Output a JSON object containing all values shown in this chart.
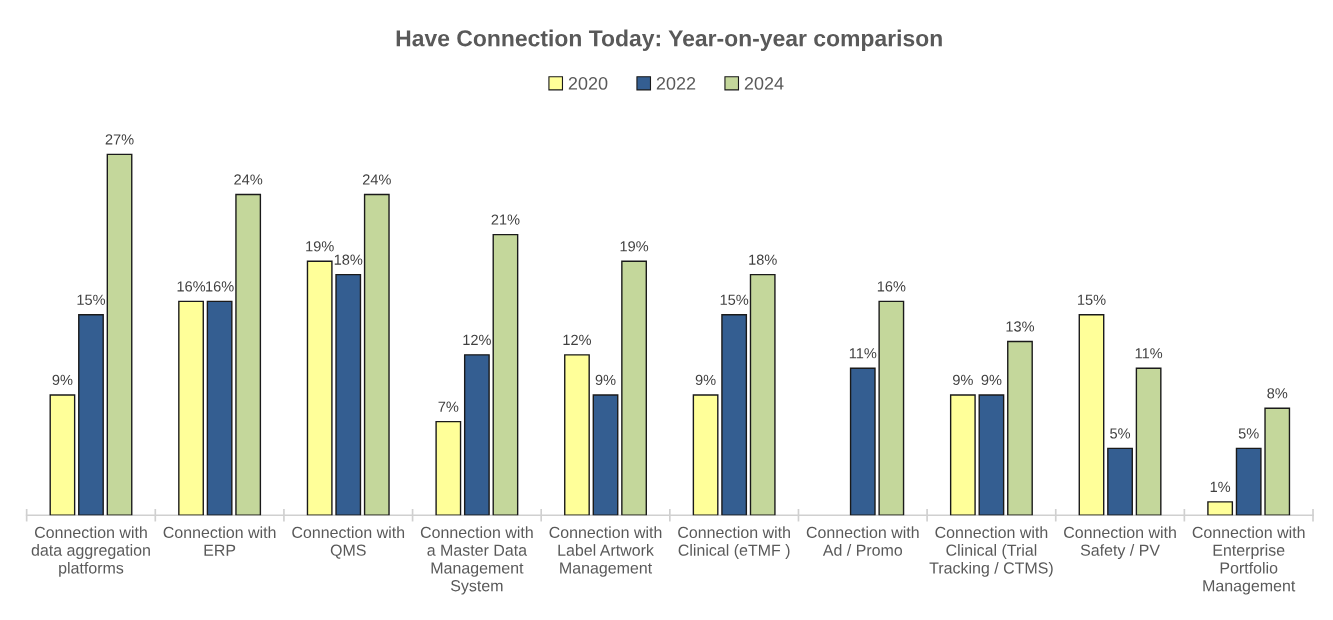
{
  "chart_data": {
    "type": "bar",
    "title": "Have Connection Today: Year-on-year comparison",
    "categories": [
      "Connection with\ndata aggregation\nplatforms",
      "Connection with\nERP",
      "Connection with\nQMS",
      "Connection with\na Master Data\nManagement\nSystem",
      "Connection with\nLabel Artwork\nManagement",
      "Connection with\nClinical (eTMF )",
      "Connection with\nAd / Promo",
      "Connection with\nClinical (Trial\nTracking / CTMS)",
      "Connection with\nSafety / PV",
      "Connection with\nEnterprise\nPortfolio\nManagement"
    ],
    "series": [
      {
        "name": "2020",
        "color": "#ffff99",
        "values": [
          9,
          16,
          19,
          7,
          12,
          9,
          null,
          9,
          15,
          1
        ],
        "value_labels": [
          "9%",
          "16%",
          "19%",
          "7%",
          "12%",
          "9%",
          null,
          "9%",
          "15%",
          "1%"
        ]
      },
      {
        "name": "2022",
        "color": "#345e91",
        "values": [
          15,
          16,
          18,
          12,
          9,
          15,
          11,
          9,
          5,
          5
        ],
        "value_labels": [
          "15%",
          "16%",
          "18%",
          "12%",
          "9%",
          "15%",
          "11%",
          "9%",
          "5%",
          "5%"
        ]
      },
      {
        "name": "2024",
        "color": "#c4d79b",
        "values": [
          27,
          24,
          24,
          21,
          19,
          18,
          16,
          13,
          11,
          8
        ],
        "value_labels": [
          "27%",
          "24%",
          "24%",
          "21%",
          "19%",
          "18%",
          "16%",
          "13%",
          "11%",
          "8%"
        ]
      }
    ],
    "legend": "top",
    "tick_labels": "x"
  }
}
